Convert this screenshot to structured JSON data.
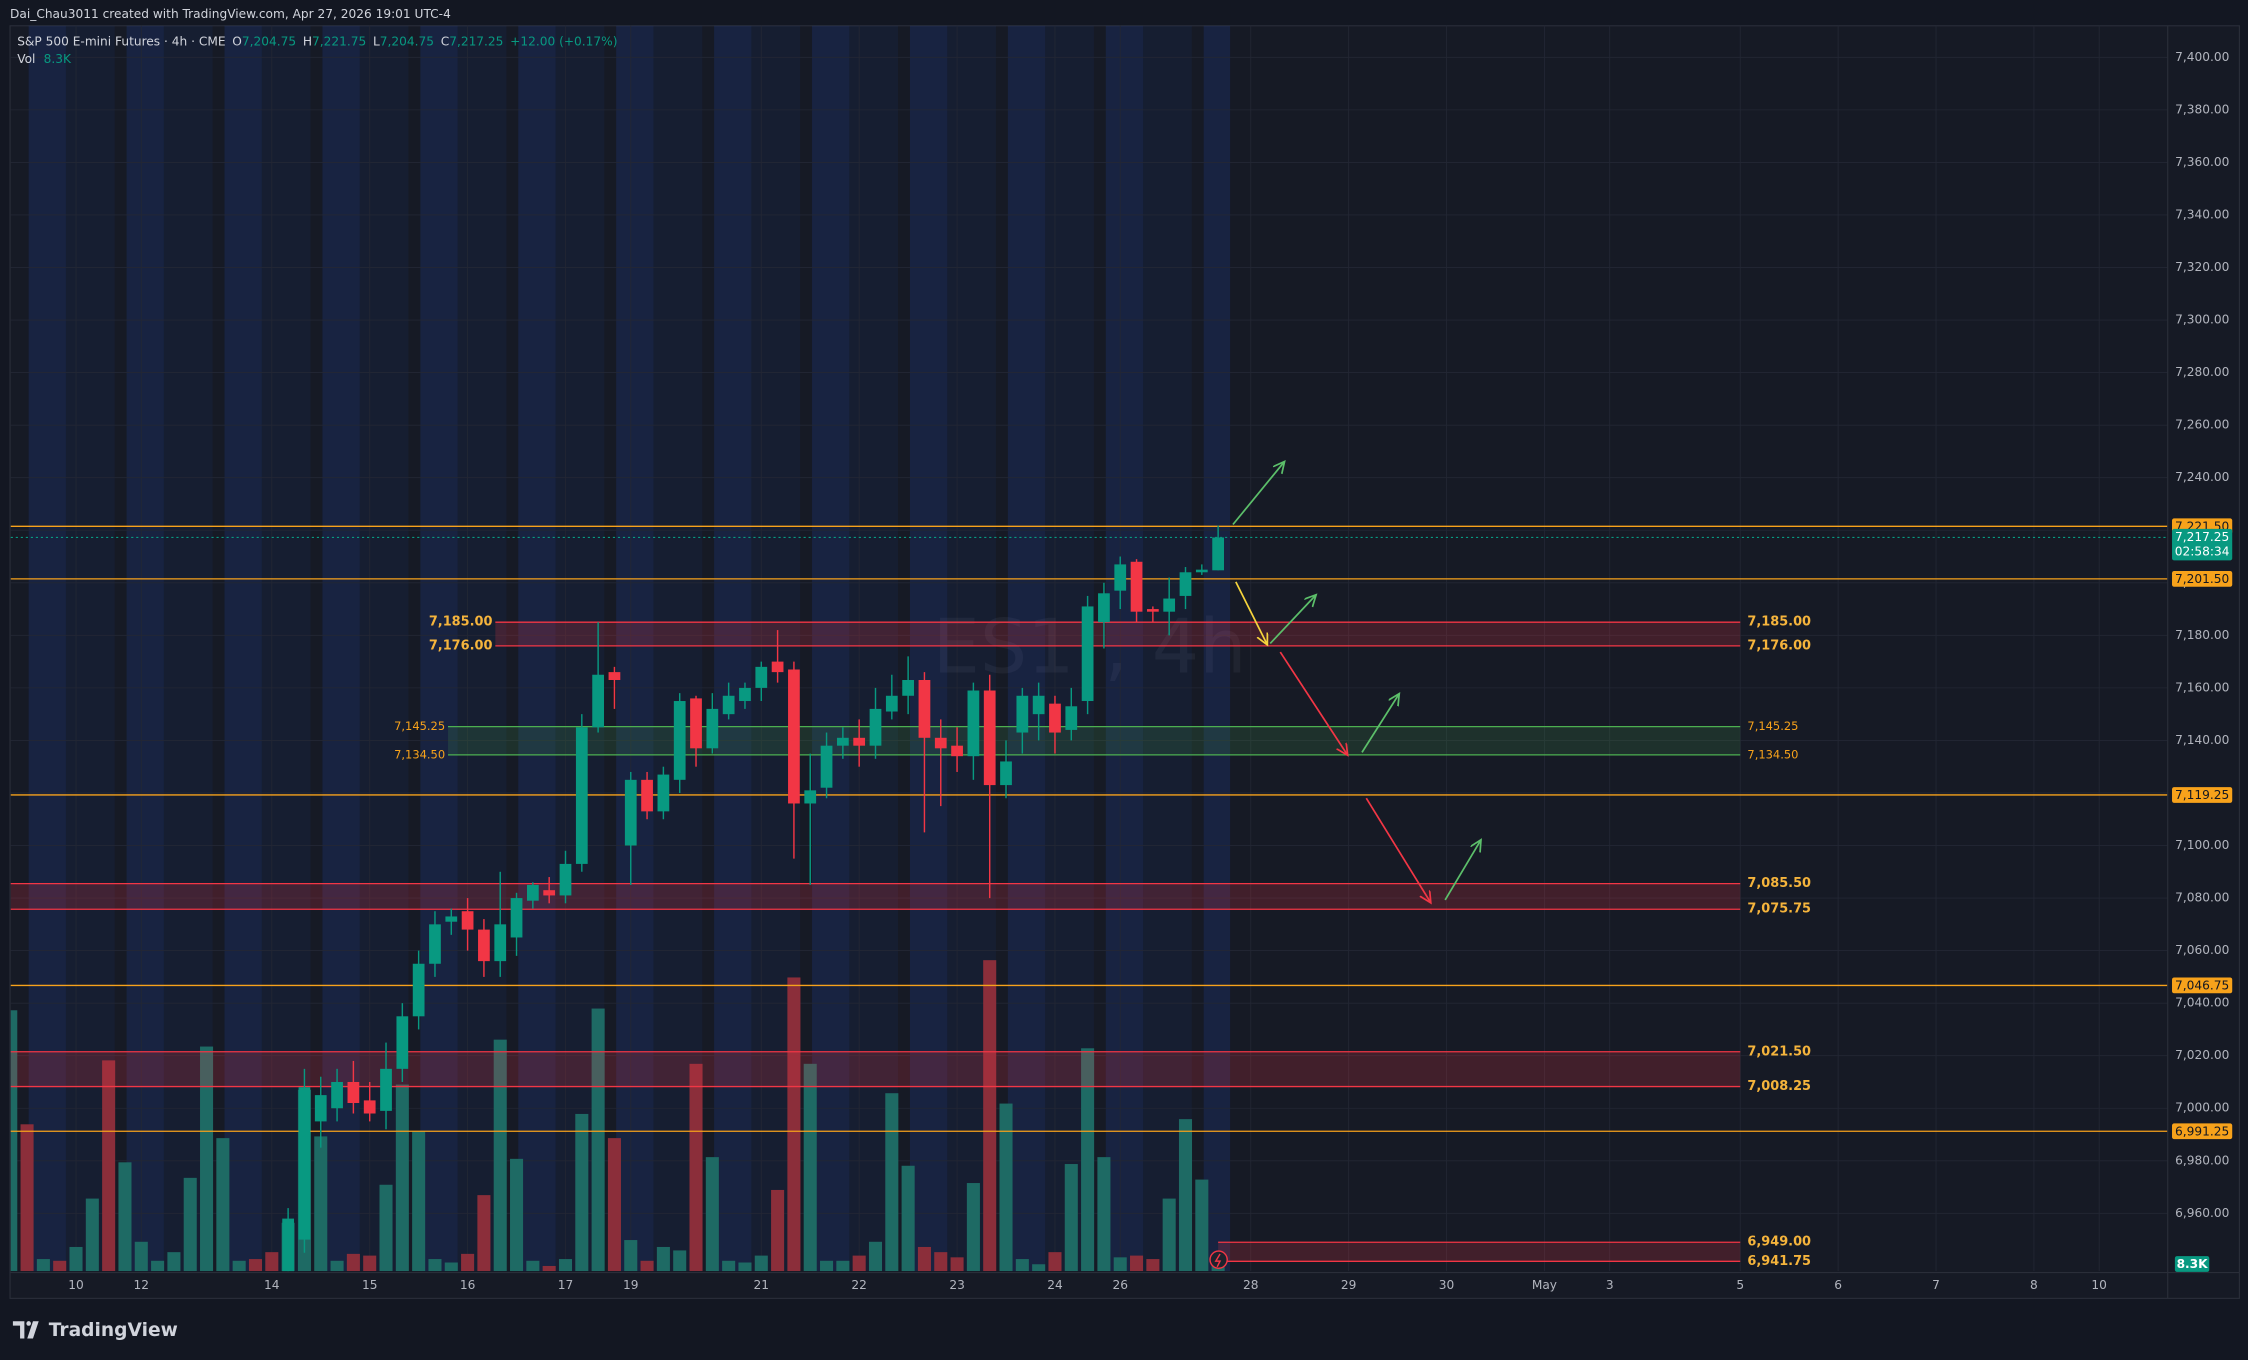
{
  "header": "Dai_Chau3011 created with TradingView.com, Apr 27, 2026 19:01 UTC-4",
  "footer": "TradingView",
  "chart_data": {
    "type": "candlestick",
    "watermark": "ES1!, 4h",
    "legend": {
      "symbol": "S&P 500 E-mini Futures · 4h · CME",
      "open_key": "O",
      "open": "7,204.75",
      "high_key": "H",
      "high": "7,221.75",
      "low_key": "L",
      "low": "7,204.75",
      "close_key": "C",
      "close": "7,217.25",
      "change": "+12.00 (+0.17%)",
      "volume_key": "Vol"
    },
    "up_color": "#089981",
    "down_color": "#f23645",
    "xlim": [
      0,
      132.2
    ],
    "ylim": [
      6938,
      7412
    ],
    "grid": true,
    "xticks": [
      {
        "value": 4,
        "label": "10"
      },
      {
        "value": 8,
        "label": "12"
      },
      {
        "value": 16,
        "label": "14"
      },
      {
        "value": 22,
        "label": "15"
      },
      {
        "value": 28,
        "label": "16"
      },
      {
        "value": 34,
        "label": "17"
      },
      {
        "value": 38,
        "label": "19"
      },
      {
        "value": 46,
        "label": "21"
      },
      {
        "value": 52,
        "label": "22"
      },
      {
        "value": 58,
        "label": "23"
      },
      {
        "value": 64,
        "label": "24"
      },
      {
        "value": 68,
        "label": "26"
      },
      {
        "value": 76,
        "label": "28"
      },
      {
        "value": 82,
        "label": "29"
      },
      {
        "value": 88,
        "label": "30"
      },
      {
        "value": 94,
        "label": "May"
      },
      {
        "value": 98,
        "label": "3"
      },
      {
        "value": 106,
        "label": "5"
      },
      {
        "value": 112,
        "label": "6"
      },
      {
        "value": 118,
        "label": "7"
      },
      {
        "value": 124,
        "label": "8"
      },
      {
        "value": 128,
        "label": "10"
      }
    ],
    "yticks": [
      {
        "value": 6960,
        "label": "6,960.00"
      },
      {
        "value": 6980,
        "label": "6,980.00"
      },
      {
        "value": 7000,
        "label": "7,000.00"
      },
      {
        "value": 7020,
        "label": "7,020.00"
      },
      {
        "value": 7040,
        "label": "7,040.00"
      },
      {
        "value": 7060,
        "label": "7,060.00"
      },
      {
        "value": 7080,
        "label": "7,080.00"
      },
      {
        "value": 7100,
        "label": "7,100.00"
      },
      {
        "value": 7120,
        "label": "7,120.00"
      },
      {
        "value": 7140,
        "label": "7,140.00"
      },
      {
        "value": 7160,
        "label": "7,160.00"
      },
      {
        "value": 7180,
        "label": "7,180.00"
      },
      {
        "value": 7200,
        "label": "7,200.00"
      },
      {
        "value": 7220,
        "label": "7,220.00"
      },
      {
        "value": 7240,
        "label": "7,240.00"
      },
      {
        "value": 7260,
        "label": "7,260.00"
      },
      {
        "value": 7280,
        "label": "7,280.00"
      },
      {
        "value": 7300,
        "label": "7,300.00"
      },
      {
        "value": 7320,
        "label": "7,320.00"
      },
      {
        "value": 7340,
        "label": "7,340.00"
      },
      {
        "value": 7360,
        "label": "7,360.00"
      },
      {
        "value": 7380,
        "label": "7,380.00"
      },
      {
        "value": 7400,
        "label": "7,400.00"
      }
    ],
    "x": [
      17,
      18,
      19,
      20,
      21,
      22,
      23,
      24,
      25,
      26,
      27,
      28,
      29,
      30,
      31,
      32,
      33,
      34,
      35,
      36,
      37,
      38,
      39,
      40,
      41,
      42,
      43,
      44,
      45,
      46,
      47,
      48,
      49,
      50,
      51,
      52,
      53,
      54,
      55,
      56,
      57,
      58,
      59,
      60,
      61,
      62,
      63,
      64,
      65,
      66,
      67,
      68,
      69,
      70,
      71,
      72,
      73,
      74
    ],
    "open": [
      6935,
      6950,
      6995,
      7000,
      7010,
      7003,
      6999,
      7015,
      7035,
      7055,
      7071,
      7075,
      7068,
      7056,
      7065,
      7079,
      7083,
      7081,
      7093,
      7145,
      7166,
      7100,
      7125,
      7113,
      7125,
      7156,
      7137,
      7150,
      7155,
      7160,
      7170,
      7167,
      7116,
      7122,
      7138,
      7141,
      7138,
      7151,
      7157,
      7163,
      7141,
      7138,
      7134,
      7159,
      7123,
      7143,
      7150,
      7154,
      7144,
      7155,
      7185,
      7197,
      7208,
      7190,
      7189,
      7195,
      7204,
      7204.75
    ],
    "high": [
      6962,
      7015,
      7012,
      7015,
      7018,
      7010,
      7025,
      7040,
      7060,
      7075,
      7076,
      7080,
      7072,
      7090,
      7082,
      7086,
      7088,
      7098,
      7150,
      7185,
      7168,
      7128,
      7128,
      7130,
      7158,
      7157,
      7158,
      7162,
      7162,
      7170,
      7182,
      7170,
      7135,
      7143,
      7145,
      7148,
      7160,
      7165,
      7172,
      7166,
      7148,
      7145,
      7162,
      7165,
      7140,
      7160,
      7162,
      7157,
      7160,
      7195,
      7200,
      7210,
      7209,
      7191,
      7202,
      7206,
      7207,
      7221.75
    ],
    "low": [
      6930,
      6945,
      6985,
      6995,
      6998,
      6995,
      6992,
      7010,
      7030,
      7050,
      7066,
      7060,
      7050,
      7050,
      7058,
      7076,
      7078,
      7078,
      7090,
      7143,
      7152,
      7085,
      7110,
      7110,
      7120,
      7130,
      7135,
      7148,
      7152,
      7155,
      7162,
      7095,
      7085,
      7118,
      7133,
      7130,
      7133,
      7148,
      7150,
      7105,
      7115,
      7128,
      7125,
      7080,
      7118,
      7135,
      7140,
      7135,
      7140,
      7150,
      7175,
      7190,
      7185,
      7185,
      7180,
      7190,
      7203,
      7204.75
    ],
    "close": [
      6958,
      7008,
      7005,
      7010,
      7002,
      6998,
      7015,
      7035,
      7055,
      7070,
      7073,
      7068,
      7056,
      7070,
      7080,
      7085,
      7081,
      7093,
      7145,
      7165,
      7163,
      7125,
      7113,
      7127,
      7155,
      7137,
      7152,
      7157,
      7160,
      7168,
      7166,
      7116,
      7121,
      7138,
      7141,
      7138,
      7152,
      7157,
      7163,
      7141,
      7137,
      7134,
      7159,
      7123,
      7132,
      7157,
      7157,
      7143,
      7153,
      7191,
      7196,
      7207,
      7189,
      7189,
      7194,
      7204,
      7205,
      7217.25
    ],
    "volume": {
      "x": [
        0,
        1,
        2,
        3,
        4,
        5,
        6,
        7,
        8,
        9,
        10,
        11,
        12,
        13,
        14,
        15,
        16,
        17,
        18,
        19,
        20,
        21,
        22,
        23,
        24,
        25,
        26,
        27,
        28,
        29,
        30,
        31,
        32,
        33,
        34,
        35,
        36,
        37,
        38,
        39,
        40,
        41,
        42,
        43,
        44,
        45,
        46,
        47,
        48,
        49,
        50,
        51,
        52,
        53,
        54,
        55,
        56,
        57,
        58,
        59,
        60,
        61,
        62,
        63,
        64,
        65,
        66,
        67,
        68,
        69,
        70,
        71,
        72,
        73,
        74
      ],
      "values": [
        151,
        85,
        7,
        6,
        14,
        42,
        122,
        63,
        17,
        6,
        11,
        54,
        130,
        77,
        6,
        7,
        11,
        28,
        105,
        78,
        6,
        10,
        9,
        50,
        108,
        81,
        7,
        5,
        10,
        44,
        134,
        65,
        6,
        3,
        7,
        91,
        152,
        77,
        18,
        6,
        14,
        12,
        120,
        66,
        6,
        5,
        9,
        47,
        170,
        120,
        6,
        6,
        9,
        17,
        103,
        61,
        14,
        11,
        8,
        51,
        180,
        97,
        7,
        4,
        11,
        62,
        129,
        66,
        8,
        9,
        7,
        42,
        88,
        53,
        8.3
      ],
      "value_labels": [
        null,
        null,
        null,
        null,
        null,
        null,
        null,
        null,
        null,
        null,
        null,
        null,
        null,
        null,
        null,
        null,
        null,
        null,
        null,
        null,
        null,
        null,
        null,
        null,
        null,
        null,
        null,
        null,
        null,
        null,
        null,
        null,
        null,
        null,
        null,
        null,
        null,
        null,
        null,
        null,
        null,
        null,
        null,
        null,
        null,
        null,
        null,
        null,
        null,
        null,
        null,
        null,
        null,
        null,
        null,
        null,
        null,
        null,
        null,
        null,
        null,
        null,
        null,
        null,
        null,
        null,
        null,
        null,
        null,
        null,
        null,
        null,
        null,
        null,
        "8.3K"
      ],
      "colors": [
        "#1e6a64",
        "#8b2e3a",
        "#1e6a64",
        "#8b2e3a",
        "#1e6a64",
        "#1e6a64",
        "#8b2e3a",
        "#1e6a64",
        "#1e6a64",
        "#1e6a64",
        "#1e6a64",
        "#1e6a64",
        "#1e6a64",
        "#1e6a64",
        "#1e6a64",
        "#8b2e3a",
        "#8b2e3a",
        "#1e6a64",
        "#1e6a64",
        "#1e6a64",
        "#1e6a64",
        "#8b2e3a",
        "#8b2e3a",
        "#1e6a64",
        "#1e6a64",
        "#1e6a64",
        "#1e6a64",
        "#1e6a64",
        "#8b2e3a",
        "#8b2e3a",
        "#1e6a64",
        "#1e6a64",
        "#1e6a64",
        "#8b2e3a",
        "#1e6a64",
        "#1e6a64",
        "#1e6a64",
        "#8b2e3a",
        "#1e6a64",
        "#8b2e3a",
        "#1e6a64",
        "#1e6a64",
        "#8b2e3a",
        "#1e6a64",
        "#1e6a64",
        "#1e6a64",
        "#1e6a64",
        "#8b2e3a",
        "#8b2e3a",
        "#1e6a64",
        "#1e6a64",
        "#1e6a64",
        "#8b2e3a",
        "#1e6a64",
        "#1e6a64",
        "#1e6a64",
        "#8b2e3a",
        "#8b2e3a",
        "#8b2e3a",
        "#1e6a64",
        "#8b2e3a",
        "#1e6a64",
        "#1e6a64",
        "#1e6a64",
        "#8b2e3a",
        "#1e6a64",
        "#1e6a64",
        "#1e6a64",
        "#1e6a64",
        "#8b2e3a",
        "#8b2e3a",
        "#1e6a64",
        "#1e6a64",
        "#1e6a64",
        "#1e6a64"
      ]
    },
    "levels_color": "#f7a21b",
    "levels": [
      {
        "value": 7221.5,
        "label": "7,221.50"
      },
      {
        "value": 7201.5,
        "label": "7,201.50"
      },
      {
        "value": 7119.25,
        "label": "7,119.25"
      },
      {
        "value": 7046.75,
        "label": "7,046.75"
      },
      {
        "value": 6991.25,
        "label": "6,991.25"
      }
    ],
    "current": {
      "value": 7217.25,
      "label": "7,217.25",
      "countdown": "02:58:34"
    },
    "zones": [
      {
        "high": {
          "value": 7185,
          "label": "7,185.00"
        },
        "low": {
          "value": 7176,
          "label": "7,176.00"
        },
        "from": 29.7,
        "to": 106,
        "color": "#f23645",
        "left_labels": true
      },
      {
        "high": {
          "value": 7145.25,
          "label": "7,145.25"
        },
        "low": {
          "value": 7134.5,
          "label": "7,134.50"
        },
        "from": 26.8,
        "to": 106,
        "color": "#4caf50",
        "left_labels": true
      },
      {
        "high": {
          "value": 7085.5,
          "label": "7,085.50"
        },
        "low": {
          "value": 7075.75,
          "label": "7,075.75"
        },
        "from": 0,
        "to": 106,
        "color": "#f23645",
        "left_labels": false
      },
      {
        "high": {
          "value": 7021.5,
          "label": "7,021.50"
        },
        "low": {
          "value": 7008.25,
          "label": "7,008.25"
        },
        "from": 0,
        "to": 106,
        "color": "#f23645",
        "left_labels": false
      },
      {
        "high": {
          "value": 6949,
          "label": "6,949.00"
        },
        "low": {
          "value": 6941.75,
          "label": "6,941.75"
        },
        "from": 74,
        "to": 106,
        "color": "#f23645",
        "left_labels": false
      }
    ]
  }
}
